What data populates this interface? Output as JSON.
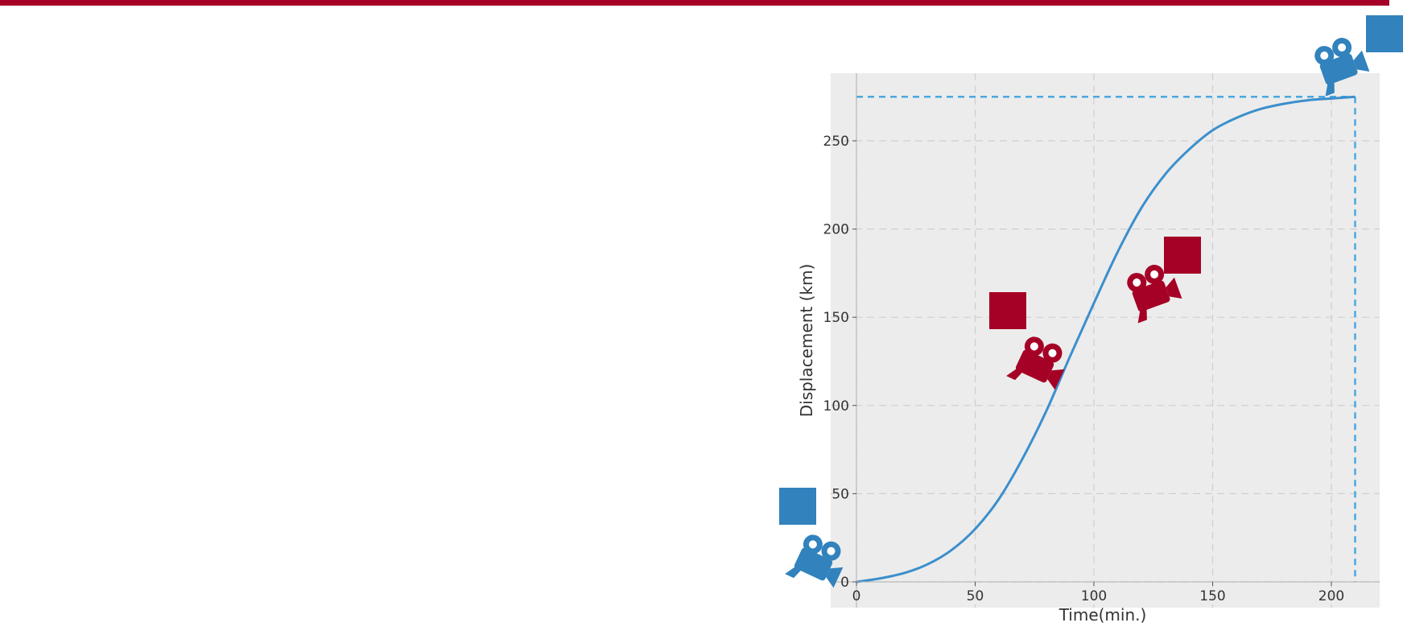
{
  "colors": {
    "accent_red": "#a50026",
    "accent_blue": "#3182bd",
    "line_blue": "#3b8fcc",
    "dashed_blue": "#4aa8e0",
    "plot_bg": "#ececec",
    "grid": "#cfcfcf"
  },
  "icons": {
    "camera": "video-camera-icon",
    "square": "square-marker"
  },
  "chart_data": {
    "type": "line",
    "title": "",
    "xlabel": "Time(min.)",
    "ylabel": "Displacement (km)",
    "xlim": [
      0,
      220
    ],
    "ylim": [
      -12,
      290
    ],
    "xticks": [
      0,
      50,
      100,
      150,
      200
    ],
    "yticks": [
      0,
      50,
      100,
      150,
      200,
      250
    ],
    "grid": true,
    "series": [
      {
        "x": [
          0,
          10,
          20,
          30,
          40,
          50,
          60,
          70,
          80,
          90,
          100,
          110,
          120,
          130,
          140,
          150,
          160,
          170,
          180,
          190,
          200,
          210
        ],
        "y": [
          0,
          2,
          5,
          10,
          18,
          30,
          47,
          70,
          97,
          128,
          158,
          187,
          212,
          231,
          245,
          256,
          263,
          268,
          271,
          273,
          274,
          275
        ]
      }
    ],
    "reference_lines": {
      "x": 210,
      "y": 275
    }
  }
}
